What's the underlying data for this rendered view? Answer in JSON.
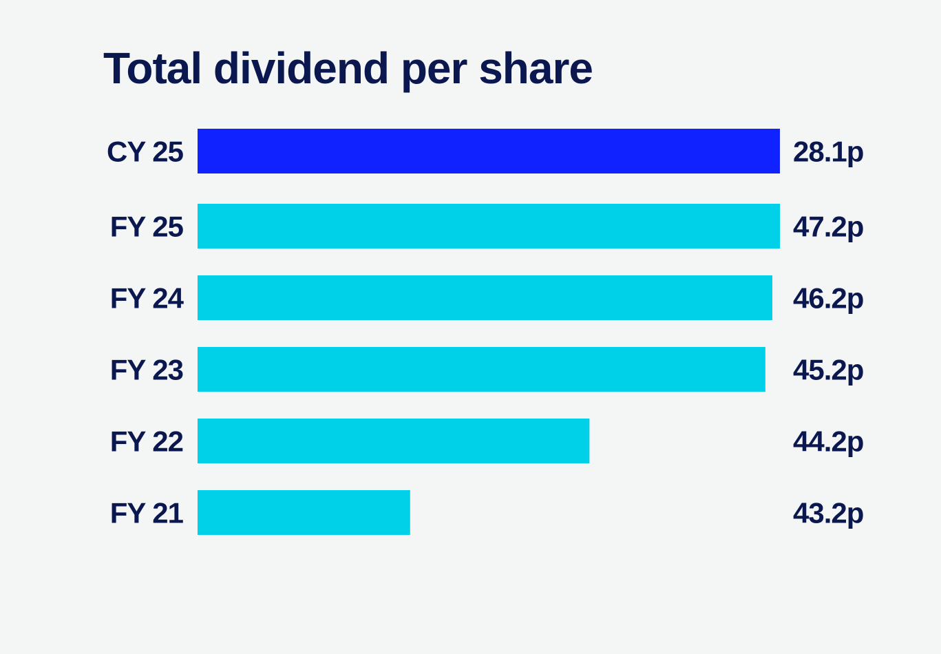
{
  "chart_data": {
    "type": "bar",
    "orientation": "horizontal",
    "title": "Total dividend per share",
    "categories": [
      "CY 25",
      "FY 25",
      "FY 24",
      "FY 23",
      "FY 22",
      "FY 21"
    ],
    "values": [
      28.1,
      47.2,
      46.2,
      45.2,
      44.2,
      43.2
    ],
    "value_labels": [
      "28.1p",
      "47.2p",
      "46.2p",
      "45.2p",
      "44.2p",
      "43.2p"
    ],
    "unit": "p",
    "bar_fill": [
      1.0,
      1.0,
      0.987,
      0.975,
      0.673,
      0.365
    ],
    "colors": [
      "#0f22ff",
      "#00d1e8",
      "#00d1e8",
      "#00d1e8",
      "#00d1e8",
      "#00d1e8"
    ],
    "text_color": "#0b1850",
    "grid": false,
    "legend": "none"
  }
}
